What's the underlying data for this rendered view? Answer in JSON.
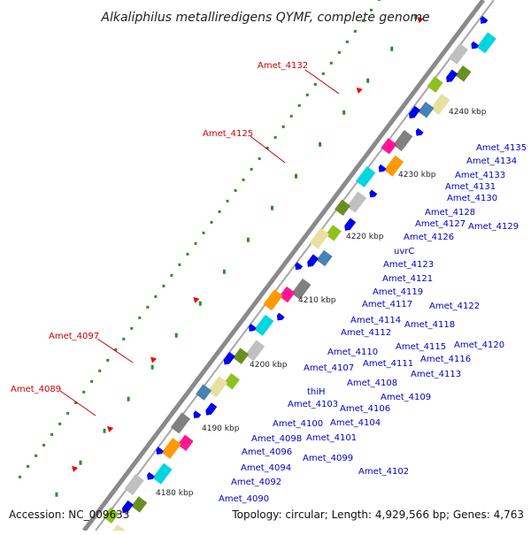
{
  "title": "Alkaliphilus metalliredigens QYMF, complete genome",
  "accession": "Accession: NC_009633",
  "topology": "Topology: circular; Length: 4,929,566 bp; Genes: 4,763",
  "colors": {
    "label_blue": "#0000cc",
    "label_red": "#cc0000",
    "backbone": "#808080",
    "gene_blue": "#0000ee",
    "green_tick": "#228b22"
  },
  "kbp_labels": [
    "4240 kbp",
    "4230 kbp",
    "4220 kbp",
    "4210 kbp",
    "4200 kbp",
    "4190 kbp",
    "4180 kbp"
  ],
  "red_labels": [
    "Amet_4132",
    "Amet_4125",
    "Amet_4097",
    "Amet_4089"
  ],
  "blue_labels": [
    "Amet_4135",
    "Amet_4134",
    "Amet_4133",
    "Amet_4131",
    "Amet_4130",
    "Amet_4128",
    "Amet_4129",
    "Amet_4127",
    "Amet_4126",
    "uvrC",
    "Amet_4123",
    "Amet_4121",
    "Amet_4119",
    "Amet_4122",
    "Amet_4117",
    "Amet_4114",
    "Amet_4118",
    "Amet_4112",
    "Amet_4115",
    "Amet_4120",
    "Amet_4110",
    "Amet_4116",
    "Amet_4107",
    "Amet_4111",
    "Amet_4113",
    "Amet_4108",
    "thiH",
    "Amet_4109",
    "Amet_4103",
    "Amet_4106",
    "Amet_4100",
    "Amet_4104",
    "Amet_4098",
    "Amet_4101",
    "Amet_4096",
    "Amet_4099",
    "Amet_4094",
    "Amet_4102",
    "Amet_4092",
    "Amet_4090"
  ]
}
